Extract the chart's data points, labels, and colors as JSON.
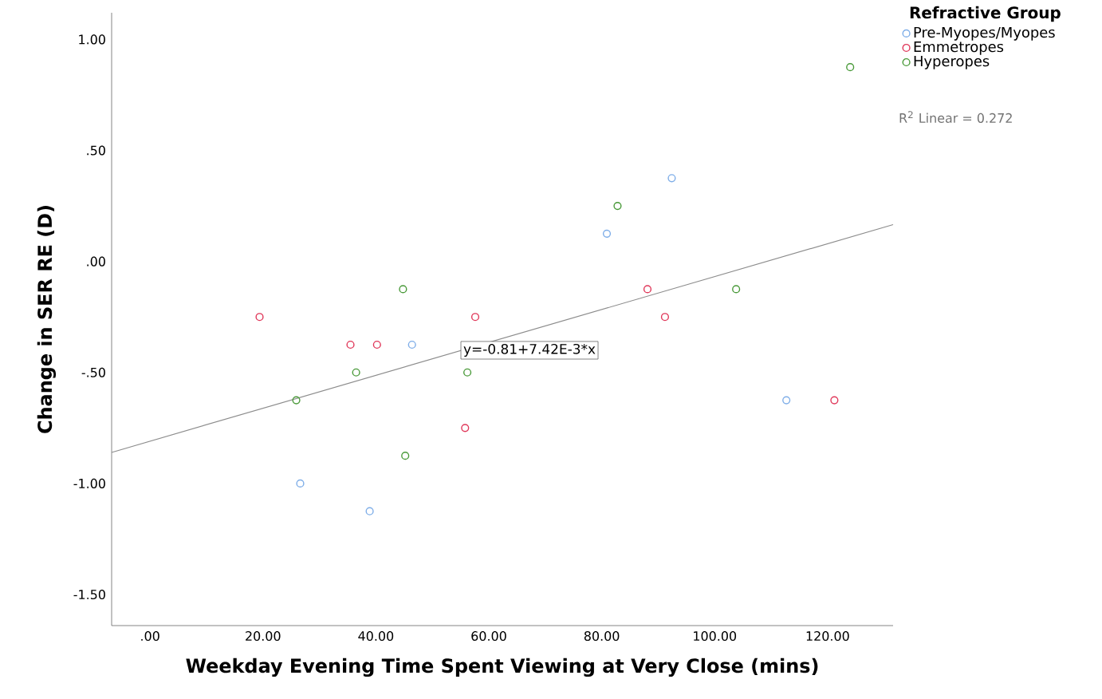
{
  "chart_data": {
    "type": "scatter",
    "xlabel": "Weekday Evening Time Spent Viewing at Very Close (mins)",
    "ylabel": "Change in SER RE (D)",
    "legend_title": "Refractive Group",
    "legend": "top right",
    "marker": "circle",
    "xlim": [
      -6.8,
      131.6
    ],
    "ylim": [
      -1.64,
      1.12
    ],
    "xticks": [
      {
        "value": 0,
        "label": ".00"
      },
      {
        "value": 20,
        "label": "20.00"
      },
      {
        "value": 40,
        "label": "40.00"
      },
      {
        "value": 60,
        "label": "60.00"
      },
      {
        "value": 80,
        "label": "80.00"
      },
      {
        "value": 100,
        "label": "100.00"
      },
      {
        "value": 120,
        "label": "120.00"
      }
    ],
    "yticks": [
      {
        "value": 1,
        "label": "1.00"
      },
      {
        "value": 0.5,
        "label": ".50"
      },
      {
        "value": 0,
        "label": ".00"
      },
      {
        "value": -0.5,
        "label": "-.50"
      },
      {
        "value": -1,
        "label": "-1.00"
      },
      {
        "value": -1.5,
        "label": "-1.50"
      }
    ],
    "annotations": [
      "R$^{2}$ Linear = 0.272",
      {
        "text": "y=-0.81+7.42E-3*x",
        "x": 55,
        "y": -0.4
      }
    ],
    "series": [
      {
        "name": "Pre-Myopes/Myopes",
        "color": "#7faee8",
        "x": [
          26.6,
          38.9,
          46.4,
          80.9,
          92.4,
          112.7
        ],
        "values": [
          -1.0,
          -1.125,
          -0.375,
          0.125,
          0.375,
          -0.625
        ]
      },
      {
        "name": "Emmetropes",
        "color": "#e0385a",
        "x": [
          19.4,
          35.5,
          40.2,
          55.8,
          57.6,
          88.1,
          91.2,
          121.2
        ],
        "values": [
          -0.25,
          -0.375,
          -0.375,
          -0.75,
          -0.25,
          -0.125,
          -0.25,
          -0.625
        ]
      },
      {
        "name": "Hyperopes",
        "color": "#4a9a3a",
        "x": [
          25.9,
          36.5,
          44.8,
          45.2,
          56.2,
          82.8,
          103.8,
          124.0
        ],
        "values": [
          -0.625,
          -0.5,
          -0.125,
          -0.875,
          -0.5,
          0.25,
          -0.125,
          0.875
        ]
      },
      {
        "type": "line",
        "color": "#8c8c8c",
        "marker": "none",
        "x": [
          -6.8,
          131.6
        ],
        "values": [
          -0.86,
          0.166
        ]
      }
    ]
  }
}
